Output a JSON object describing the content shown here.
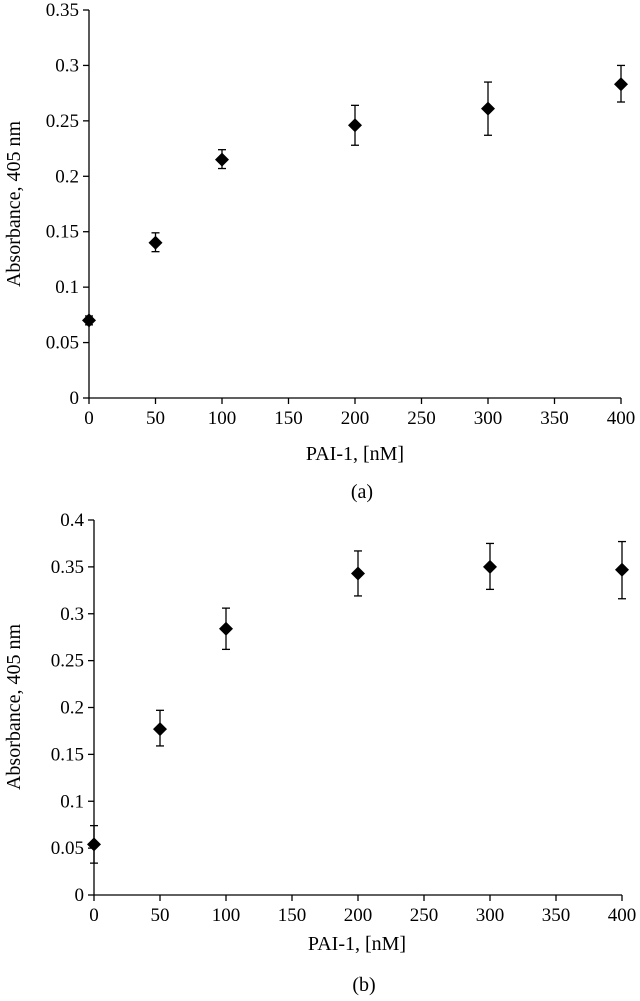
{
  "chart_data": [
    {
      "type": "scatter",
      "panel_label": "(a)",
      "xlabel": "PAI-1, [nM]",
      "ylabel": "Absorbance, 405 nm",
      "xlim": [
        0,
        400
      ],
      "ylim": [
        0,
        0.35
      ],
      "xticks": [
        0,
        50,
        100,
        150,
        200,
        250,
        300,
        350,
        400
      ],
      "xtick_labels": [
        "0",
        "50",
        "100",
        "150",
        "200",
        "250",
        "300",
        "350",
        "400"
      ],
      "yticks": [
        0,
        0.05,
        0.1,
        0.15,
        0.2,
        0.25,
        0.3,
        0.35
      ],
      "ytick_labels": [
        "0",
        "0.05",
        "0.1",
        "0.15",
        "0.2",
        "0.25",
        "0.3",
        "0.35"
      ],
      "grid": false,
      "marker": "diamond",
      "color": "#000000",
      "points": [
        {
          "x": 0,
          "y": 0.07,
          "err_low": 0.004,
          "err_high": 0.004
        },
        {
          "x": 50,
          "y": 0.14,
          "err_low": 0.008,
          "err_high": 0.009
        },
        {
          "x": 100,
          "y": 0.215,
          "err_low": 0.008,
          "err_high": 0.009
        },
        {
          "x": 200,
          "y": 0.246,
          "err_low": 0.018,
          "err_high": 0.018
        },
        {
          "x": 300,
          "y": 0.261,
          "err_low": 0.024,
          "err_high": 0.024
        },
        {
          "x": 400,
          "y": 0.283,
          "err_low": 0.016,
          "err_high": 0.017
        }
      ]
    },
    {
      "type": "scatter",
      "panel_label": "(b)",
      "xlabel": "PAI-1, [nM]",
      "ylabel": "Absorbance, 405 nm",
      "xlim": [
        0,
        400
      ],
      "ylim": [
        0,
        0.4
      ],
      "xticks": [
        0,
        50,
        100,
        150,
        200,
        250,
        300,
        350,
        400
      ],
      "xtick_labels": [
        "0",
        "50",
        "100",
        "150",
        "200",
        "250",
        "300",
        "350",
        "400"
      ],
      "yticks": [
        0,
        0.05,
        0.1,
        0.15,
        0.2,
        0.25,
        0.3,
        0.35,
        0.4
      ],
      "ytick_labels": [
        "0",
        "0.05",
        "0.1",
        "0.15",
        "0.2",
        "0.25",
        "0.3",
        "0.35",
        "0.4"
      ],
      "grid": false,
      "marker": "diamond",
      "color": "#000000",
      "points": [
        {
          "x": 0,
          "y": 0.054,
          "err_low": 0.02,
          "err_high": 0.02
        },
        {
          "x": 50,
          "y": 0.177,
          "err_low": 0.018,
          "err_high": 0.02
        },
        {
          "x": 100,
          "y": 0.284,
          "err_low": 0.022,
          "err_high": 0.022
        },
        {
          "x": 200,
          "y": 0.343,
          "err_low": 0.024,
          "err_high": 0.024
        },
        {
          "x": 300,
          "y": 0.35,
          "err_low": 0.024,
          "err_high": 0.025
        },
        {
          "x": 400,
          "y": 0.347,
          "err_low": 0.031,
          "err_high": 0.03
        }
      ]
    }
  ]
}
